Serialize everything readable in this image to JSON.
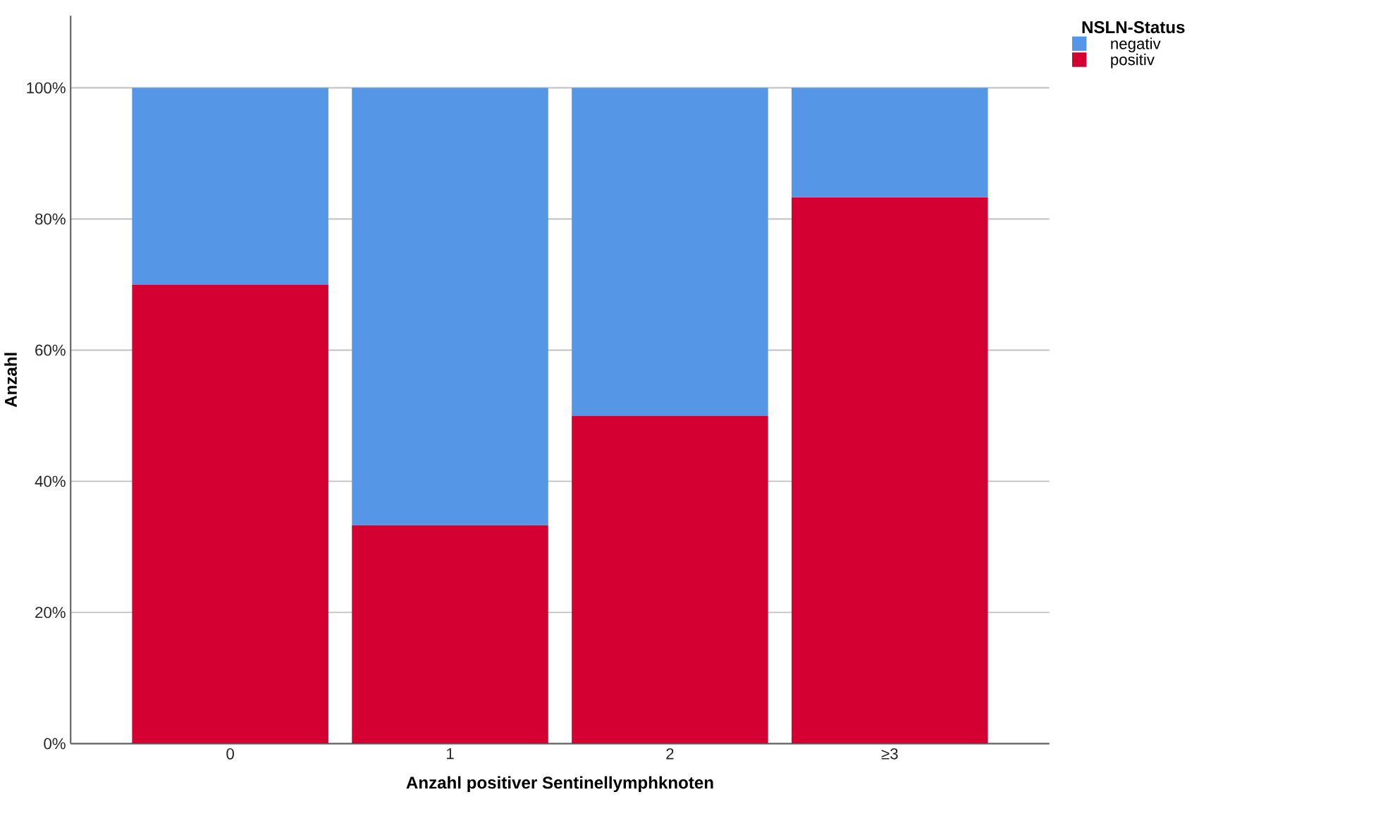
{
  "chart_data": {
    "type": "bar",
    "stacked": true,
    "xlabel": "Anzahl positiver Sentinellymphknoten",
    "ylabel": "Anzahl",
    "legend_title": "NSLN-Status",
    "categories": [
      "0",
      "1",
      "2",
      "≥3"
    ],
    "series": [
      {
        "name": "positiv",
        "color": "#d50032",
        "values": [
          70,
          33.3,
          50,
          83.3
        ]
      },
      {
        "name": "negativ",
        "color": "#5596e6",
        "values": [
          30,
          66.7,
          50,
          16.7
        ]
      }
    ],
    "ylim": [
      0,
      111
    ],
    "yticks": [
      {
        "value": 0,
        "label": "0%"
      },
      {
        "value": 20,
        "label": "20%"
      },
      {
        "value": 40,
        "label": "40%"
      },
      {
        "value": 60,
        "label": "60%"
      },
      {
        "value": 80,
        "label": "80%"
      },
      {
        "value": 100,
        "label": "100%"
      }
    ],
    "grid": "y",
    "legend": "top right"
  }
}
